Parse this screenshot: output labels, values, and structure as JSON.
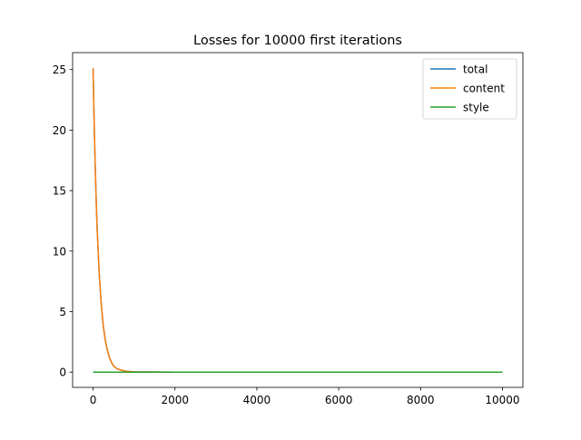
{
  "chart_data": {
    "type": "line",
    "title": "Losses for 10000 first iterations",
    "xlabel": "",
    "ylabel": "",
    "xlim": [
      -500,
      10500
    ],
    "ylim": [
      -1.26,
      26.4
    ],
    "x_ticks": [
      0,
      2000,
      4000,
      6000,
      8000,
      10000
    ],
    "x_tick_labels": [
      "0",
      "2000",
      "4000",
      "6000",
      "8000",
      "10000"
    ],
    "y_ticks": [
      0,
      5,
      10,
      15,
      20,
      25
    ],
    "y_tick_labels": [
      "0",
      "5",
      "10",
      "15",
      "20",
      "25"
    ],
    "grid": false,
    "legend_position": "top-right",
    "series": [
      {
        "name": "total",
        "color": "#1f77b4",
        "x": [
          0,
          10,
          25,
          50,
          75,
          100,
          150,
          200,
          250,
          300,
          350,
          400,
          450,
          500,
          600,
          800,
          1000,
          2000,
          4000,
          6000,
          8000,
          10000
        ],
        "values": [
          25.1,
          23.3,
          20.8,
          17.3,
          14.3,
          11.8,
          8.1,
          5.6,
          3.8,
          2.6,
          1.8,
          1.2,
          0.8,
          0.5,
          0.25,
          0.07,
          0.02,
          0.0,
          0.0,
          0.0,
          0.0,
          0.0
        ]
      },
      {
        "name": "content",
        "color": "#ff7f0e",
        "x": [
          0,
          10,
          25,
          50,
          75,
          100,
          150,
          200,
          250,
          300,
          350,
          400,
          450,
          500,
          600,
          800,
          1000,
          2000,
          4000,
          6000,
          8000,
          10000
        ],
        "values": [
          25.1,
          23.3,
          20.8,
          17.3,
          14.3,
          11.8,
          8.1,
          5.6,
          3.8,
          2.6,
          1.8,
          1.2,
          0.8,
          0.5,
          0.25,
          0.07,
          0.02,
          0.0,
          0.0,
          0.0,
          0.0,
          0.0
        ]
      },
      {
        "name": "style",
        "color": "#2ca02c",
        "x": [
          0,
          10000
        ],
        "values": [
          0.0,
          0.0
        ]
      }
    ]
  }
}
